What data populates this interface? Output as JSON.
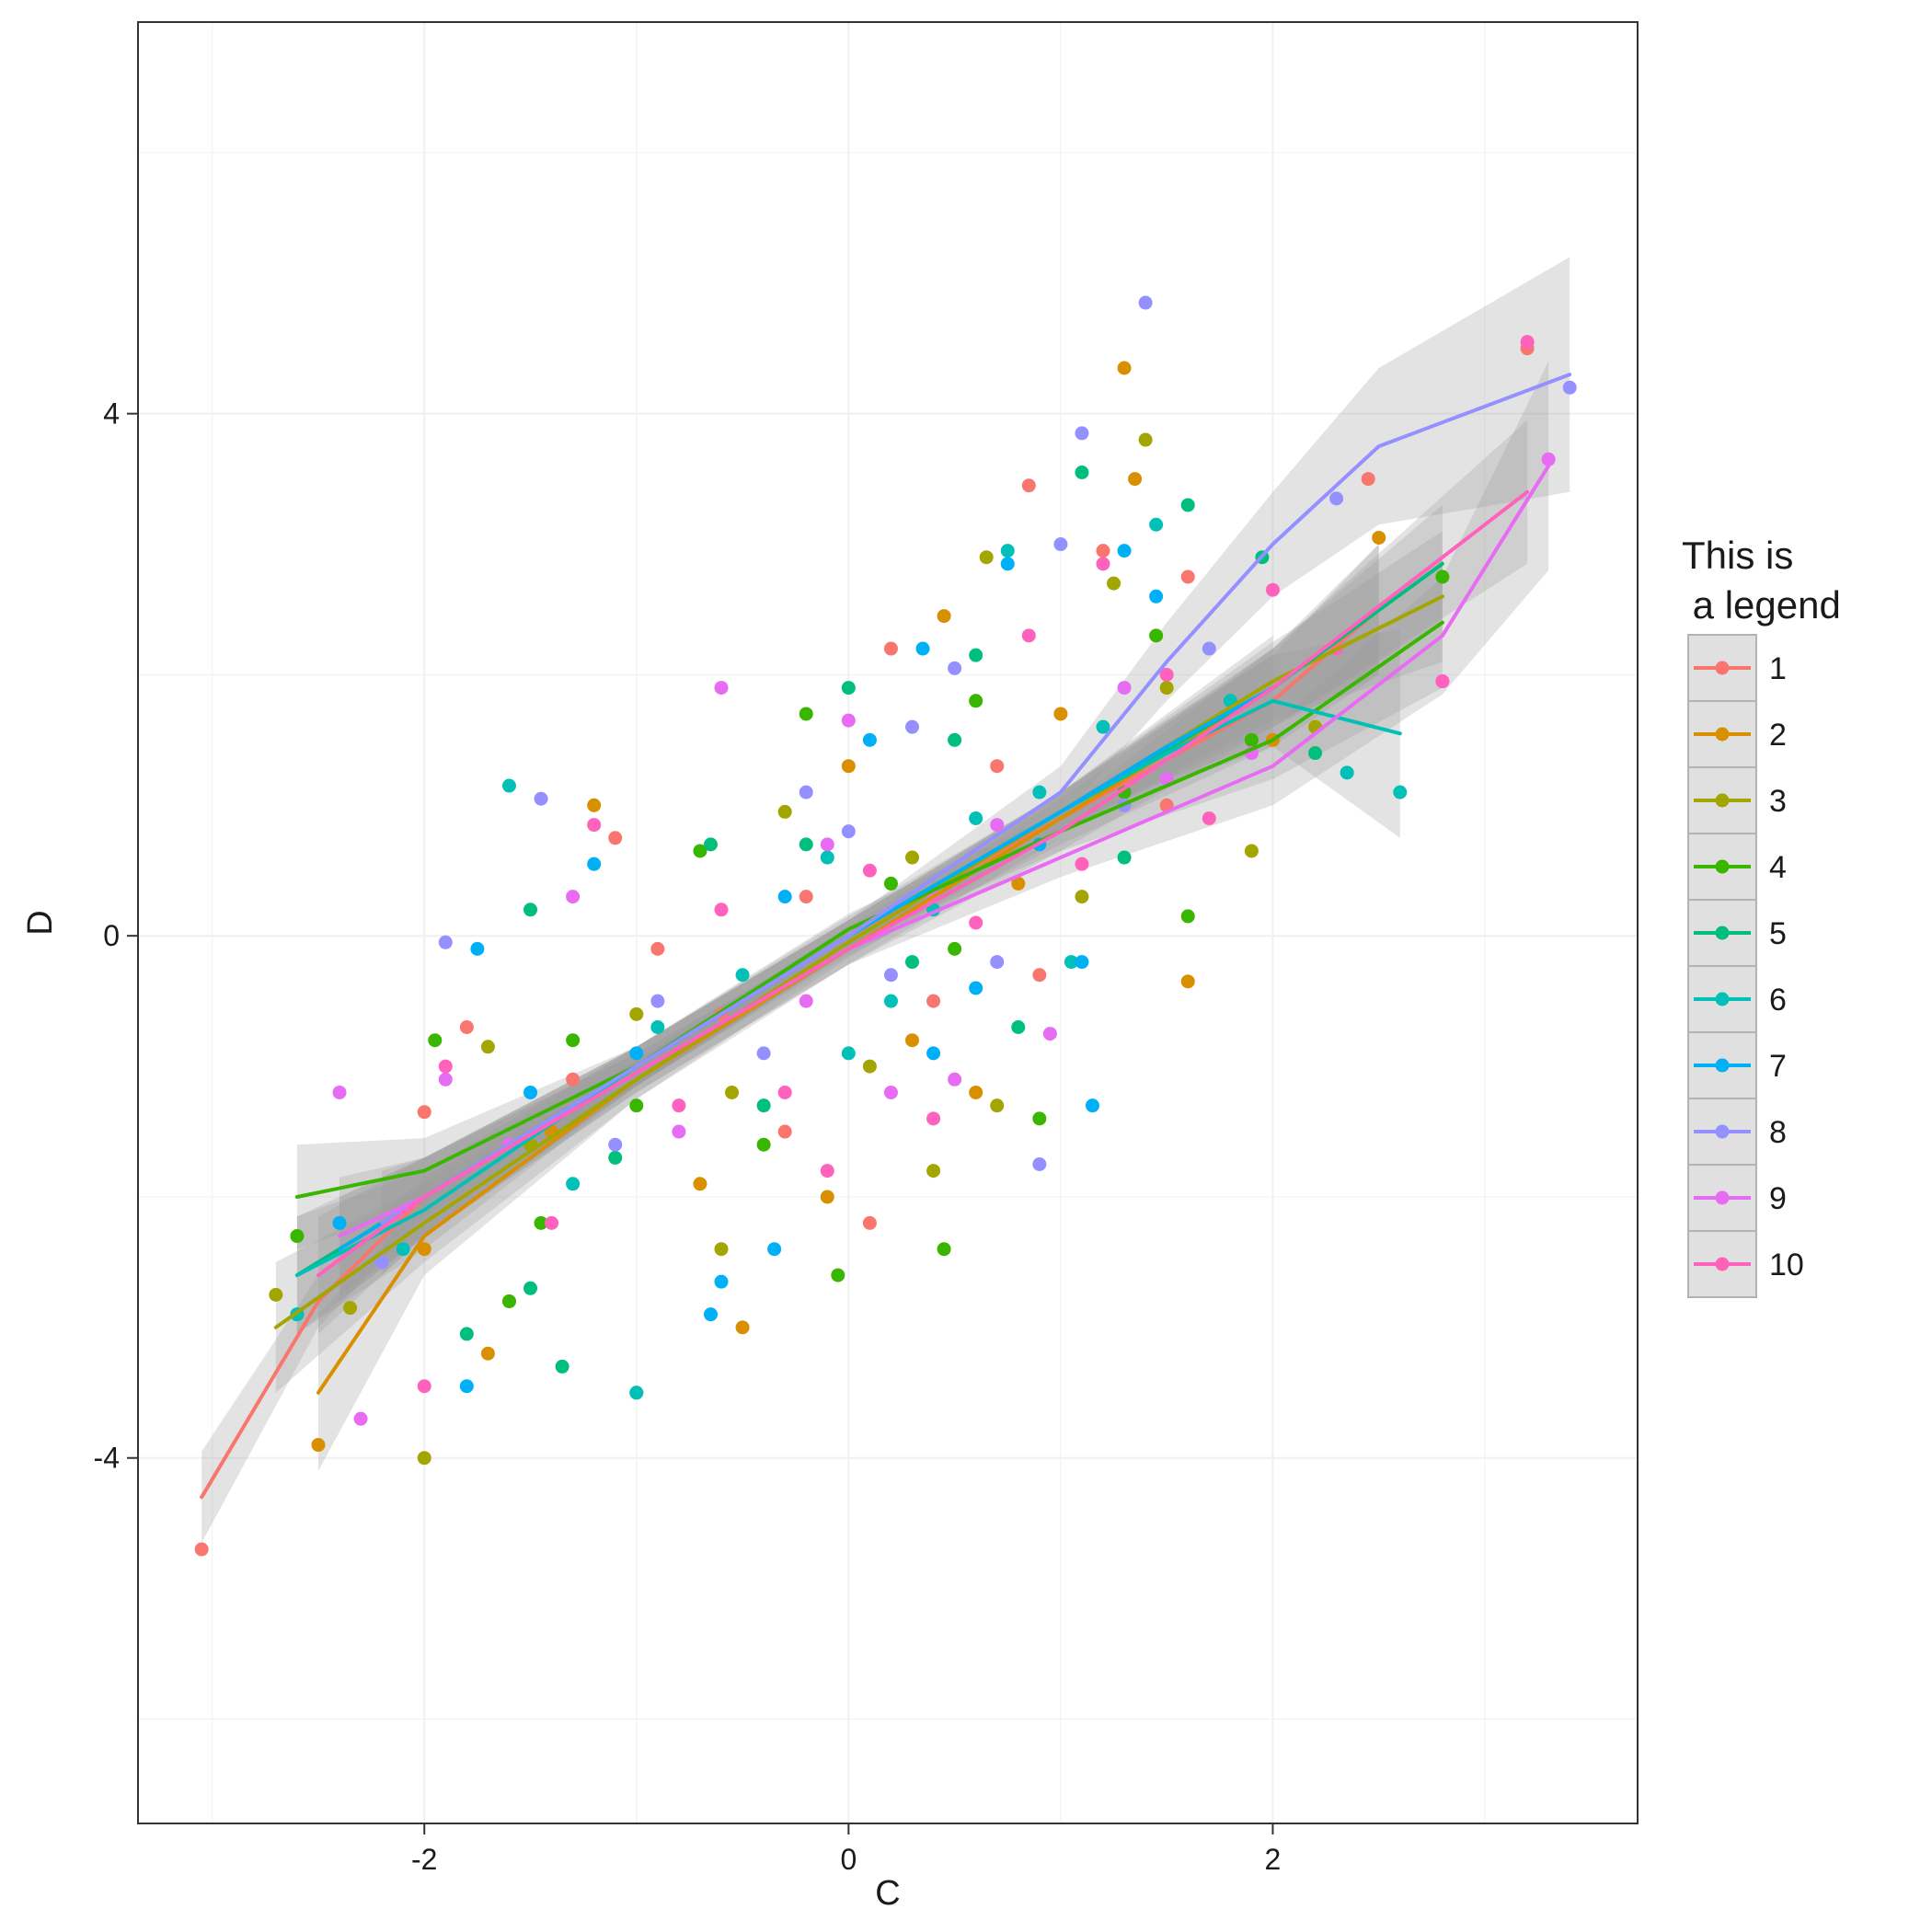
{
  "chart_data": {
    "type": "scatter",
    "title": "",
    "xlabel": "C",
    "ylabel": "D",
    "xlim": [
      -3.35,
      3.72
    ],
    "ylim": [
      -6.8,
      7.0
    ],
    "x_ticks": [
      -2,
      0,
      2
    ],
    "x_tick_labels": [
      "-2",
      "0",
      "2"
    ],
    "y_ticks": [
      -4,
      0,
      4
    ],
    "y_tick_labels": [
      "-4",
      "0",
      "4"
    ],
    "grid": true,
    "legend": {
      "title_lines": [
        "This is",
        " a legend"
      ],
      "placement": "right"
    },
    "series": [
      {
        "name": "1",
        "color": "#F8766D",
        "trend": [
          [
            -3.05,
            -4.3
          ],
          [
            -2.5,
            -2.8
          ],
          [
            -2.0,
            -2.0
          ],
          [
            -1.0,
            -1.0
          ],
          [
            0,
            0
          ],
          [
            1.0,
            0.9
          ],
          [
            2.0,
            1.8
          ],
          [
            2.5,
            2.5
          ]
        ],
        "band": [
          0.35,
          0.2,
          0.15,
          0.15,
          0.15,
          0.2,
          0.35,
          0.5
        ],
        "points": [
          [
            -3.05,
            -4.7
          ],
          [
            -2.0,
            -1.35
          ],
          [
            -1.8,
            -0.7
          ],
          [
            -1.1,
            0.75
          ],
          [
            -0.6,
            -0.6
          ],
          [
            0.2,
            2.2
          ],
          [
            0.85,
            3.45
          ],
          [
            1.2,
            2.95
          ],
          [
            1.6,
            2.75
          ],
          [
            2.45,
            3.5
          ],
          [
            3.2,
            4.5
          ],
          [
            0.4,
            -0.5
          ],
          [
            -0.3,
            -1.5
          ],
          [
            0.9,
            -0.3
          ],
          [
            -1.3,
            -1.1
          ],
          [
            -0.2,
            0.3
          ],
          [
            0.7,
            1.3
          ],
          [
            1.5,
            1.0
          ],
          [
            -0.9,
            -0.1
          ],
          [
            0.1,
            -2.2
          ]
        ]
      },
      {
        "name": "2",
        "color": "#D89000",
        "trend": [
          [
            -2.5,
            -3.5
          ],
          [
            -2.0,
            -2.3
          ],
          [
            -1.0,
            -1.1
          ],
          [
            0,
            -0.1
          ],
          [
            1.0,
            0.9
          ],
          [
            2.0,
            1.9
          ],
          [
            2.5,
            2.5
          ]
        ],
        "band": [
          0.6,
          0.3,
          0.15,
          0.12,
          0.15,
          0.3,
          0.5
        ],
        "points": [
          [
            -2.5,
            -3.9
          ],
          [
            -2.0,
            -2.4
          ],
          [
            -1.7,
            -3.2
          ],
          [
            -1.6,
            -2.8
          ],
          [
            -1.2,
            1.0
          ],
          [
            -0.5,
            -3.0
          ],
          [
            0.45,
            2.45
          ],
          [
            1.3,
            4.35
          ],
          [
            1.35,
            3.5
          ],
          [
            1.6,
            -0.35
          ],
          [
            2.5,
            3.05
          ],
          [
            -0.1,
            -2.0
          ],
          [
            0.3,
            -0.8
          ],
          [
            0.8,
            0.4
          ],
          [
            -0.7,
            -1.9
          ],
          [
            0.6,
            -1.2
          ],
          [
            1.0,
            1.7
          ],
          [
            -1.4,
            -1.5
          ],
          [
            0.0,
            1.3
          ],
          [
            2.0,
            1.5
          ]
        ]
      },
      {
        "name": "3",
        "color": "#A3A500",
        "trend": [
          [
            -2.7,
            -3.0
          ],
          [
            -2.0,
            -2.2
          ],
          [
            -1.0,
            -1.1
          ],
          [
            0,
            -0.05
          ],
          [
            1.0,
            0.95
          ],
          [
            2.0,
            1.95
          ],
          [
            2.8,
            2.6
          ]
        ],
        "band": [
          0.5,
          0.3,
          0.15,
          0.12,
          0.15,
          0.3,
          0.5
        ],
        "points": [
          [
            -2.7,
            -2.75
          ],
          [
            -2.35,
            -2.85
          ],
          [
            -2.0,
            -4.0
          ],
          [
            -1.7,
            -0.85
          ],
          [
            -0.55,
            -1.2
          ],
          [
            0.65,
            2.9
          ],
          [
            1.4,
            3.8
          ],
          [
            1.25,
            2.7
          ],
          [
            1.9,
            0.65
          ],
          [
            -0.3,
            0.95
          ],
          [
            0.3,
            0.6
          ],
          [
            0.7,
            -1.3
          ],
          [
            -1.0,
            -0.6
          ],
          [
            0.1,
            -1.0
          ],
          [
            1.1,
            0.3
          ],
          [
            -0.6,
            -2.4
          ],
          [
            1.5,
            1.9
          ],
          [
            -1.5,
            -1.6
          ],
          [
            0.4,
            -1.8
          ],
          [
            2.2,
            1.6
          ]
        ]
      },
      {
        "name": "4",
        "color": "#39B600",
        "trend": [
          [
            -2.6,
            -2.0
          ],
          [
            -2.0,
            -1.8
          ],
          [
            -1.0,
            -1.0
          ],
          [
            0,
            0.05
          ],
          [
            1.0,
            0.8
          ],
          [
            2.0,
            1.5
          ],
          [
            2.8,
            2.4
          ]
        ],
        "band": [
          0.4,
          0.25,
          0.15,
          0.12,
          0.15,
          0.3,
          0.5
        ],
        "points": [
          [
            -2.6,
            -2.3
          ],
          [
            -1.95,
            -0.8
          ],
          [
            -1.45,
            -2.2
          ],
          [
            -1.3,
            -0.8
          ],
          [
            -0.7,
            0.65
          ],
          [
            -0.05,
            -2.6
          ],
          [
            0.45,
            -2.4
          ],
          [
            0.6,
            1.8
          ],
          [
            1.3,
            1.1
          ],
          [
            1.45,
            2.3
          ],
          [
            2.8,
            2.75
          ],
          [
            0.9,
            -1.4
          ],
          [
            -0.4,
            -1.6
          ],
          [
            0.2,
            0.4
          ],
          [
            -1.0,
            -1.3
          ],
          [
            1.6,
            0.15
          ],
          [
            0.5,
            -0.1
          ],
          [
            -0.2,
            1.7
          ],
          [
            1.9,
            1.5
          ],
          [
            -1.6,
            -2.8
          ]
        ]
      },
      {
        "name": "5",
        "color": "#00BF7D",
        "trend": [
          [
            -2.6,
            -2.6
          ],
          [
            -2.0,
            -2.0
          ],
          [
            -1.0,
            -1.0
          ],
          [
            0,
            0.0
          ],
          [
            1.0,
            0.95
          ],
          [
            2.0,
            1.9
          ],
          [
            2.8,
            2.85
          ]
        ],
        "band": [
          0.45,
          0.3,
          0.15,
          0.12,
          0.15,
          0.3,
          0.45
        ],
        "points": [
          [
            -2.6,
            -2.9
          ],
          [
            -1.8,
            -3.05
          ],
          [
            -1.5,
            -2.7
          ],
          [
            -1.35,
            -3.3
          ],
          [
            -1.0,
            -3.5
          ],
          [
            -1.5,
            0.2
          ],
          [
            -0.65,
            0.7
          ],
          [
            0.0,
            1.9
          ],
          [
            0.6,
            2.15
          ],
          [
            1.1,
            3.55
          ],
          [
            1.6,
            3.3
          ],
          [
            1.95,
            2.9
          ],
          [
            0.8,
            -0.7
          ],
          [
            -0.4,
            -1.3
          ],
          [
            0.3,
            -0.2
          ],
          [
            1.3,
            0.6
          ],
          [
            -1.1,
            -1.7
          ],
          [
            0.5,
            1.5
          ],
          [
            -0.2,
            0.7
          ],
          [
            2.2,
            1.4
          ]
        ]
      },
      {
        "name": "6",
        "color": "#00C0B8",
        "trend": [
          [
            -2.6,
            -2.6
          ],
          [
            -2.0,
            -2.1
          ],
          [
            -1.0,
            -1.0
          ],
          [
            0,
            0.0
          ],
          [
            1.0,
            0.95
          ],
          [
            1.5,
            1.4
          ],
          [
            2.0,
            1.8
          ],
          [
            2.6,
            1.55
          ]
        ],
        "band": [
          0.45,
          0.3,
          0.15,
          0.12,
          0.15,
          0.25,
          0.35,
          0.8
        ],
        "points": [
          [
            -2.6,
            -2.9
          ],
          [
            -1.6,
            1.15
          ],
          [
            -1.0,
            -3.5
          ],
          [
            0.75,
            2.95
          ],
          [
            1.45,
            3.15
          ],
          [
            2.6,
            1.1
          ],
          [
            2.35,
            1.25
          ],
          [
            1.05,
            -0.2
          ],
          [
            0.2,
            -0.5
          ],
          [
            -0.5,
            -0.3
          ],
          [
            0.6,
            0.9
          ],
          [
            -0.9,
            -0.7
          ],
          [
            1.2,
            1.6
          ],
          [
            0.0,
            -0.9
          ],
          [
            -1.3,
            -1.9
          ],
          [
            0.4,
            0.2
          ],
          [
            -0.1,
            0.6
          ],
          [
            1.8,
            1.8
          ],
          [
            -2.1,
            -2.4
          ],
          [
            0.9,
            1.1
          ]
        ]
      },
      {
        "name": "7",
        "color": "#00B0F6",
        "trend": [
          [
            -2.4,
            -2.4
          ],
          [
            -2.0,
            -2.0
          ],
          [
            -1.0,
            -1.0
          ],
          [
            0,
            0.0
          ],
          [
            1.0,
            0.95
          ],
          [
            1.5,
            1.45
          ],
          [
            2.0,
            1.9
          ]
        ],
        "band": [
          0.4,
          0.3,
          0.15,
          0.12,
          0.15,
          0.25,
          0.4
        ],
        "points": [
          [
            -2.4,
            -2.2
          ],
          [
            -1.8,
            -3.45
          ],
          [
            -1.75,
            -0.1
          ],
          [
            -1.2,
            0.55
          ],
          [
            -0.65,
            -2.9
          ],
          [
            -0.35,
            -2.4
          ],
          [
            0.35,
            2.2
          ],
          [
            0.75,
            2.85
          ],
          [
            1.15,
            -1.3
          ],
          [
            1.3,
            2.95
          ],
          [
            1.45,
            2.6
          ],
          [
            -0.6,
            -2.65
          ],
          [
            0.1,
            1.5
          ],
          [
            0.4,
            -0.9
          ],
          [
            0.9,
            0.7
          ],
          [
            -1.0,
            -0.9
          ],
          [
            1.1,
            -0.2
          ],
          [
            -0.3,
            0.3
          ],
          [
            0.6,
            -0.4
          ],
          [
            -1.5,
            -1.2
          ]
        ]
      },
      {
        "name": "8",
        "color": "#9590FF",
        "trend": [
          [
            -2.2,
            -2.2
          ],
          [
            -2.0,
            -2.0
          ],
          [
            -1.0,
            -1.0
          ],
          [
            0,
            0.0
          ],
          [
            1.0,
            1.1
          ],
          [
            1.5,
            2.1
          ],
          [
            2.0,
            3.0
          ],
          [
            2.5,
            3.75
          ],
          [
            3.4,
            4.3
          ]
        ],
        "band": [
          0.4,
          0.3,
          0.15,
          0.12,
          0.2,
          0.3,
          0.4,
          0.6,
          0.9
        ],
        "points": [
          [
            -2.2,
            -2.5
          ],
          [
            -1.9,
            -0.05
          ],
          [
            -1.45,
            1.05
          ],
          [
            1.1,
            3.85
          ],
          [
            1.4,
            4.85
          ],
          [
            2.3,
            3.35
          ],
          [
            3.4,
            4.2
          ],
          [
            1.0,
            3.0
          ],
          [
            0.5,
            2.05
          ],
          [
            0.3,
            1.6
          ],
          [
            0.9,
            -1.75
          ],
          [
            -0.9,
            -0.5
          ],
          [
            0.0,
            0.8
          ],
          [
            0.7,
            -0.2
          ],
          [
            -0.4,
            -0.9
          ],
          [
            1.3,
            1.0
          ],
          [
            -1.1,
            -1.6
          ],
          [
            0.2,
            -0.3
          ],
          [
            1.7,
            2.2
          ],
          [
            -0.2,
            1.1
          ]
        ]
      },
      {
        "name": "9",
        "color": "#E76BF3",
        "trend": [
          [
            -2.4,
            -2.3
          ],
          [
            -2.0,
            -2.0
          ],
          [
            -1.0,
            -1.05
          ],
          [
            0,
            -0.1
          ],
          [
            1.0,
            0.6
          ],
          [
            2.0,
            1.3
          ],
          [
            2.8,
            2.3
          ],
          [
            3.3,
            3.6
          ]
        ],
        "band": [
          0.45,
          0.3,
          0.15,
          0.12,
          0.15,
          0.3,
          0.45,
          0.8
        ],
        "points": [
          [
            -2.4,
            -1.2
          ],
          [
            -2.3,
            -3.7
          ],
          [
            -1.9,
            -1.1
          ],
          [
            -0.6,
            1.9
          ],
          [
            0.0,
            1.65
          ],
          [
            0.95,
            -0.75
          ],
          [
            1.3,
            1.9
          ],
          [
            3.3,
            3.65
          ],
          [
            2.8,
            1.95
          ],
          [
            0.4,
            0.3
          ],
          [
            -0.2,
            -0.5
          ],
          [
            0.7,
            0.85
          ],
          [
            -0.8,
            -1.5
          ],
          [
            0.2,
            -1.2
          ],
          [
            1.5,
            1.2
          ],
          [
            -1.3,
            0.3
          ],
          [
            0.5,
            -1.1
          ],
          [
            -0.1,
            0.7
          ],
          [
            1.9,
            1.4
          ],
          [
            -1.6,
            -1.6
          ]
        ]
      },
      {
        "name": "10",
        "color": "#FF62BC",
        "trend": [
          [
            -2.5,
            -2.6
          ],
          [
            -2.0,
            -2.0
          ],
          [
            -1.0,
            -1.05
          ],
          [
            0,
            -0.1
          ],
          [
            1.0,
            0.8
          ],
          [
            2.0,
            1.9
          ],
          [
            3.2,
            3.4
          ]
        ],
        "band": [
          0.45,
          0.3,
          0.15,
          0.12,
          0.15,
          0.3,
          0.55
        ],
        "points": [
          [
            -2.0,
            -3.45
          ],
          [
            -1.2,
            0.85
          ],
          [
            -0.8,
            -1.3
          ],
          [
            0.1,
            0.5
          ],
          [
            0.85,
            2.3
          ],
          [
            1.2,
            2.85
          ],
          [
            1.5,
            2.0
          ],
          [
            2.0,
            2.65
          ],
          [
            2.3,
            2.2
          ],
          [
            2.8,
            1.95
          ],
          [
            3.2,
            4.55
          ],
          [
            -0.3,
            -1.2
          ],
          [
            0.4,
            -1.4
          ],
          [
            -0.6,
            0.2
          ],
          [
            1.1,
            0.55
          ],
          [
            -1.4,
            -2.2
          ],
          [
            0.6,
            0.1
          ],
          [
            -0.1,
            -1.8
          ],
          [
            1.7,
            0.9
          ],
          [
            -1.9,
            -1.0
          ]
        ]
      }
    ]
  }
}
